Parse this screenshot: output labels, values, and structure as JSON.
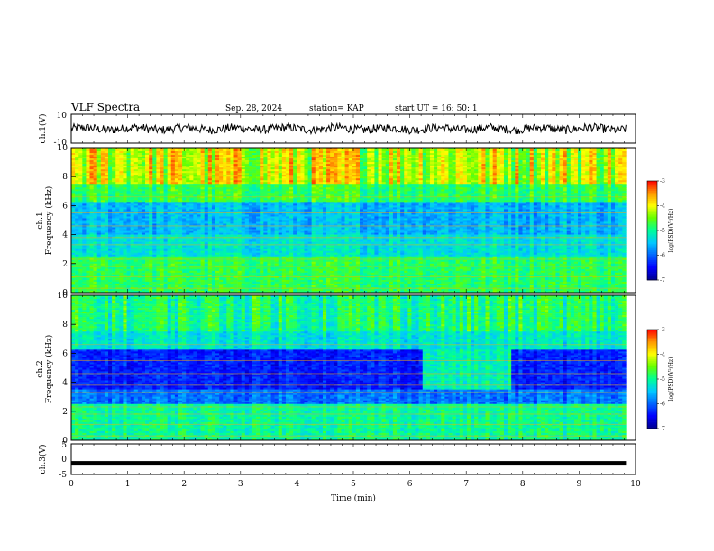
{
  "header": {
    "title": "VLF Spectra",
    "date": "Sep. 28, 2024",
    "station": "station= KAP",
    "start": "start  UT =   16: 50: 1"
  },
  "chart_data": [
    {
      "type": "line",
      "name": "ch1-waveform",
      "ylabel": "ch.1(V)",
      "ylim": [
        -10,
        10
      ],
      "yticks": [
        "10",
        "-10"
      ],
      "xlim": [
        0,
        10
      ],
      "mean": 0,
      "amplitude": 3
    },
    {
      "type": "heatmap",
      "name": "ch1-spectrogram",
      "ylabel": "Frequency (kHz)",
      "chlabel": "ch.1",
      "ylim": [
        0,
        10
      ],
      "yticks": [
        "0",
        "2",
        "4",
        "6",
        "8",
        "10"
      ],
      "xlim": [
        0,
        10
      ],
      "data_end_min": 9.83,
      "colorbar": {
        "range": [
          -7,
          -3
        ],
        "ticks": [
          "-3",
          "-4",
          "-5",
          "-6",
          "-7"
        ],
        "label": "log(PSD)(V²/Hz)"
      }
    },
    {
      "type": "heatmap",
      "name": "ch2-spectrogram",
      "ylabel": "Frequency (kHz)",
      "chlabel": "ch.2",
      "ylim": [
        0,
        10
      ],
      "yticks": [
        "0",
        "2",
        "4",
        "6",
        "8",
        "10"
      ],
      "xlim": [
        0,
        10
      ],
      "data_end_min": 9.83,
      "colorbar": {
        "range": [
          -7,
          -3
        ],
        "ticks": [
          "-3",
          "-4",
          "-5",
          "-6",
          "-7"
        ],
        "label": "log(PSD)(V²/Hz)"
      }
    },
    {
      "type": "line",
      "name": "ch3-waveform",
      "ylabel": "ch.3(V)",
      "ylim": [
        -5,
        5
      ],
      "yticks": [
        "5",
        "0",
        "-5"
      ],
      "xlim": [
        0,
        10
      ],
      "xticks": [
        "0",
        "1",
        "2",
        "3",
        "4",
        "5",
        "6",
        "7",
        "8",
        "9",
        "10"
      ],
      "xlabel": "Time (min)",
      "mean": -1.5
    }
  ],
  "colors": {
    "colormap": [
      "#00008c",
      "#0000ff",
      "#0064ff",
      "#00c8ff",
      "#00ff96",
      "#64ff00",
      "#ffff00",
      "#ff9600",
      "#ff0000",
      "#ffffff"
    ]
  }
}
